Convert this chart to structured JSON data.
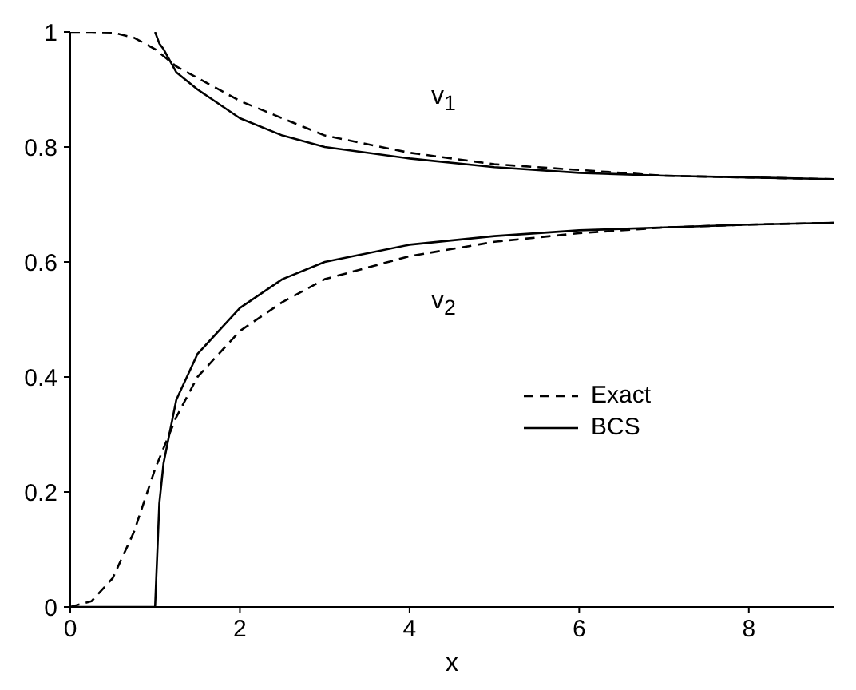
{
  "chart_data": {
    "type": "line",
    "xlabel": "x",
    "xlim": [
      0,
      9
    ],
    "xticks": [
      0,
      2,
      4,
      6,
      8
    ],
    "ylim": [
      0,
      1
    ],
    "yticks": [
      0,
      0.2,
      0.4,
      0.6,
      0.8,
      1
    ],
    "grid": false,
    "legend": "right",
    "marker": "none",
    "series": [
      {
        "name": "Exact",
        "color": "#000000",
        "line_style": "dashed",
        "x": [
          0,
          0.25,
          0.5,
          0.75,
          1,
          1.25,
          1.5,
          2,
          2.5,
          3,
          4,
          5,
          6,
          7,
          8,
          9
        ],
        "values": [
          1,
          1,
          0.999,
          0.99,
          0.97,
          0.94,
          0.92,
          0.88,
          0.85,
          0.82,
          0.79,
          0.77,
          0.76,
          0.75,
          0.747,
          0.744
        ]
      },
      {
        "name": "BCS",
        "color": "#000000",
        "line_style": "solid",
        "x": [
          1,
          1.05,
          1.1,
          1.25,
          1.5,
          2,
          2.5,
          3,
          4,
          5,
          6,
          7,
          8,
          9
        ],
        "values": [
          1,
          0.98,
          0.97,
          0.93,
          0.9,
          0.85,
          0.82,
          0.8,
          0.78,
          0.765,
          0.755,
          0.75,
          0.747,
          0.744
        ]
      },
      {
        "color": "#000000",
        "line_style": "dashed",
        "x": [
          0,
          0.25,
          0.5,
          0.75,
          1,
          1.25,
          1.5,
          2,
          2.5,
          3,
          4,
          5,
          6,
          7,
          8,
          9
        ],
        "values": [
          0,
          0.01,
          0.05,
          0.13,
          0.24,
          0.33,
          0.4,
          0.48,
          0.53,
          0.57,
          0.61,
          0.635,
          0.65,
          0.66,
          0.665,
          0.668
        ]
      },
      {
        "color": "#000000",
        "line_style": "solid",
        "x": [
          0,
          1,
          1.05,
          1.1,
          1.25,
          1.5,
          2,
          2.5,
          3,
          4,
          5,
          6,
          7,
          8,
          9
        ],
        "values": [
          0,
          0,
          0.18,
          0.25,
          0.36,
          0.44,
          0.52,
          0.57,
          0.6,
          0.63,
          0.645,
          0.655,
          0.66,
          0.665,
          0.668
        ]
      }
    ],
    "annotations": [
      "v$_{1}$",
      "v$_{2}$"
    ]
  }
}
